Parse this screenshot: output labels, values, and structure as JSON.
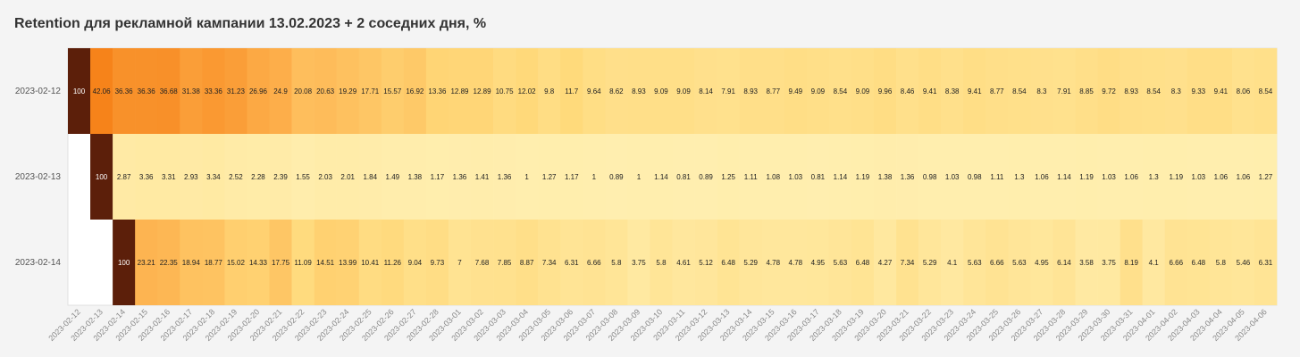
{
  "chart_data": {
    "type": "heatmap",
    "title": "Retention для рекламной кампании 13.02.2023 + 2 соседних дня, %",
    "y_categories": [
      "2023-02-12",
      "2023-02-13",
      "2023-02-14"
    ],
    "x_categories": [
      "2023-02-12",
      "2023-02-13",
      "2023-02-14",
      "2023-02-15",
      "2023-02-16",
      "2023-02-17",
      "2023-02-18",
      "2023-02-19",
      "2023-02-20",
      "2023-02-21",
      "2023-02-22",
      "2023-02-23",
      "2023-02-24",
      "2023-02-25",
      "2023-02-26",
      "2023-02-27",
      "2023-02-28",
      "2023-03-01",
      "2023-03-02",
      "2023-03-03",
      "2023-03-04",
      "2023-03-05",
      "2023-03-06",
      "2023-03-07",
      "2023-03-08",
      "2023-03-09",
      "2023-03-10",
      "2023-03-11",
      "2023-03-12",
      "2023-03-13",
      "2023-03-14",
      "2023-03-15",
      "2023-03-16",
      "2023-03-17",
      "2023-03-18",
      "2023-03-19",
      "2023-03-20",
      "2023-03-21",
      "2023-03-22",
      "2023-03-23",
      "2023-03-24",
      "2023-03-25",
      "2023-03-26",
      "2023-03-27",
      "2023-03-28",
      "2023-03-29",
      "2023-03-30",
      "2023-03-31",
      "2023-04-01",
      "2023-04-02",
      "2023-04-03",
      "2023-04-04",
      "2023-04-05",
      "2023-04-06"
    ],
    "rows": [
      {
        "start_index": 0,
        "values": [
          100,
          42.06,
          36.36,
          36.36,
          36.68,
          31.38,
          33.36,
          31.23,
          26.96,
          24.9,
          20.08,
          20.63,
          19.29,
          17.71,
          15.57,
          16.92,
          13.36,
          12.89,
          12.89,
          10.75,
          12.02,
          9.8,
          11.7,
          9.64,
          8.62,
          8.93,
          9.09,
          9.09,
          8.14,
          7.91,
          8.93,
          8.77,
          9.49,
          9.09,
          8.54,
          9.09,
          9.96,
          8.46,
          9.41,
          8.38,
          9.41,
          8.77,
          8.54,
          8.3,
          7.91,
          8.85,
          9.72,
          8.93,
          8.54,
          8.3,
          9.33,
          9.41,
          8.06,
          8.54
        ]
      },
      {
        "start_index": 1,
        "values": [
          100,
          2.87,
          3.36,
          3.31,
          2.93,
          3.34,
          2.52,
          2.28,
          2.39,
          1.55,
          2.03,
          2.01,
          1.84,
          1.49,
          1.38,
          1.17,
          1.36,
          1.41,
          1.36,
          1,
          1.27,
          1.17,
          1,
          0.89,
          1,
          1.14,
          0.81,
          0.89,
          1.25,
          1.11,
          1.08,
          1.03,
          0.81,
          1.14,
          1.19,
          1.38,
          1.36,
          0.98,
          1.03,
          0.98,
          1.11,
          1.3,
          1.06,
          1.14,
          1.19,
          1.03,
          1.06,
          1.3,
          1.19,
          1.03,
          1.06,
          1.06,
          1.27
        ]
      },
      {
        "start_index": 2,
        "values": [
          100,
          23.21,
          22.35,
          18.94,
          18.77,
          15.02,
          14.33,
          17.75,
          11.09,
          14.51,
          13.99,
          10.41,
          11.26,
          9.04,
          9.73,
          7,
          7.68,
          7.85,
          8.87,
          7.34,
          6.31,
          6.66,
          5.8,
          3.75,
          5.8,
          4.61,
          5.12,
          6.48,
          5.29,
          4.78,
          4.78,
          4.95,
          5.63,
          6.48,
          4.27,
          7.34,
          5.29,
          4.1,
          5.63,
          6.66,
          5.63,
          4.95,
          6.14,
          3.58,
          3.75,
          8.19,
          4.1,
          6.66,
          6.48,
          5.8,
          5.46,
          6.31
        ]
      }
    ],
    "color_scale": [
      "#fff0b3",
      "#ffd97a",
      "#fdae4a",
      "#f6831a",
      "#5c1f0a"
    ],
    "grid": false,
    "legend": "none"
  }
}
